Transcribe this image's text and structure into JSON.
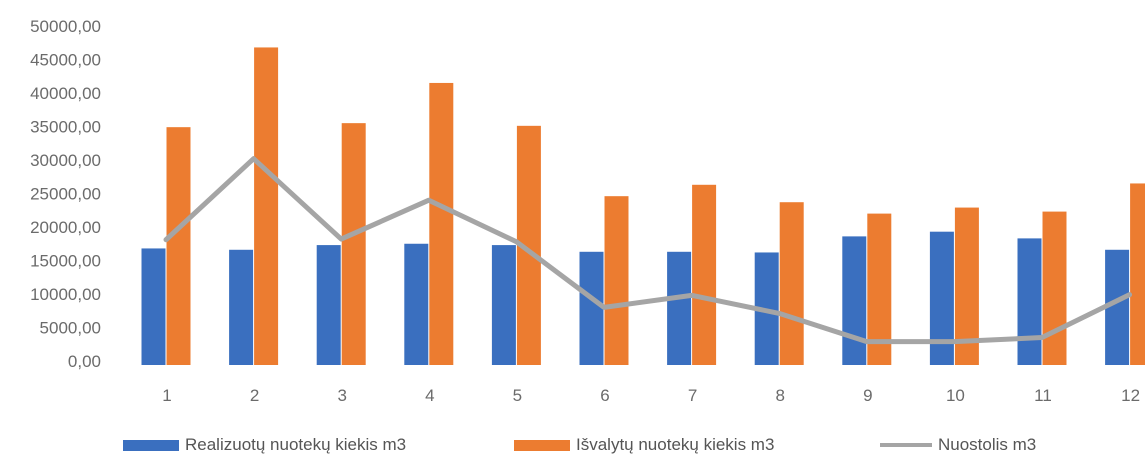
{
  "chart_data": {
    "type": "bar",
    "categories": [
      "1",
      "2",
      "3",
      "4",
      "5",
      "6",
      "7",
      "8",
      "9",
      "10",
      "11",
      "12"
    ],
    "series": [
      {
        "name": "Realizuotų nuotekų kiekis m3",
        "kind": "bar",
        "color": "#3a6fbf",
        "values": [
          16800,
          16600,
          17300,
          17500,
          17300,
          16300,
          16300,
          16200,
          18600,
          19300,
          18300,
          16600
        ]
      },
      {
        "name": "Išvalytų nuotekų kiekis m3",
        "kind": "bar",
        "color": "#ec7c30",
        "values": [
          34900,
          46800,
          35500,
          41500,
          35100,
          24600,
          26300,
          23700,
          22000,
          22900,
          22300,
          26500
        ]
      },
      {
        "name": "Nuostolis  m3",
        "kind": "line",
        "color": "#a5a5a5",
        "values": [
          18100,
          30200,
          18200,
          24000,
          17800,
          8000,
          9800,
          7100,
          2900,
          2900,
          3500,
          9900
        ]
      }
    ],
    "y_ticks": [
      "0,00",
      "5000,00",
      "10000,00",
      "15000,00",
      "20000,00",
      "25000,00",
      "30000,00",
      "35000,00",
      "40000,00",
      "45000,00",
      "50000,00"
    ],
    "ylim": [
      0,
      50000
    ],
    "grid": false,
    "legend_position": "bottom"
  }
}
